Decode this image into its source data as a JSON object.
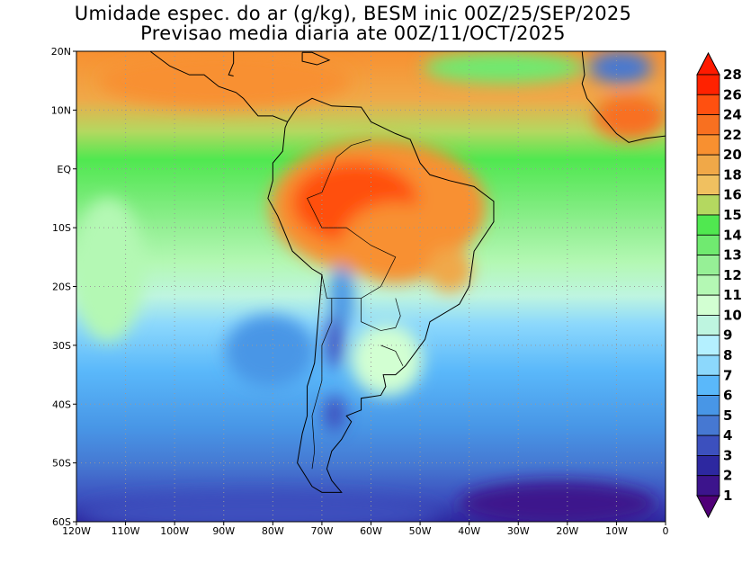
{
  "title": {
    "line1": "Umidade espec. do ar (g/kg), BESM inic 00Z/25/SEP/2025",
    "line2": "Previsao media diaria ate 00Z/11/OCT/2025"
  },
  "axes": {
    "x_labels": [
      "120W",
      "110W",
      "100W",
      "90W",
      "80W",
      "70W",
      "60W",
      "50W",
      "40W",
      "30W",
      "20W",
      "10W",
      "0"
    ],
    "y_labels": [
      "20N",
      "10N",
      "EQ",
      "10S",
      "20S",
      "30S",
      "40S",
      "50S",
      "60S"
    ],
    "lon_range": [
      -120,
      0
    ],
    "lat_range": [
      -60,
      20
    ]
  },
  "colorbar": {
    "labels": [
      "28",
      "26",
      "24",
      "22",
      "20",
      "18",
      "16",
      "15",
      "14",
      "13",
      "12",
      "11",
      "10",
      "9",
      "8",
      "7",
      "6",
      "5",
      "4",
      "3",
      "2",
      "1"
    ],
    "over_color": "#ff1a00",
    "under_color": "#500078",
    "colors": [
      "#ff2200",
      "#ff5010",
      "#f87020",
      "#f89030",
      "#f0a848",
      "#f0c060",
      "#b4d860",
      "#50e850",
      "#70ea70",
      "#96f096",
      "#b4f8b4",
      "#d2ffd2",
      "#bef5e0",
      "#b4f0ff",
      "#8cd8fc",
      "#5ab8fa",
      "#4896e6",
      "#4678d2",
      "#3c50be",
      "#2d28a0",
      "#3c148c"
    ]
  }
}
